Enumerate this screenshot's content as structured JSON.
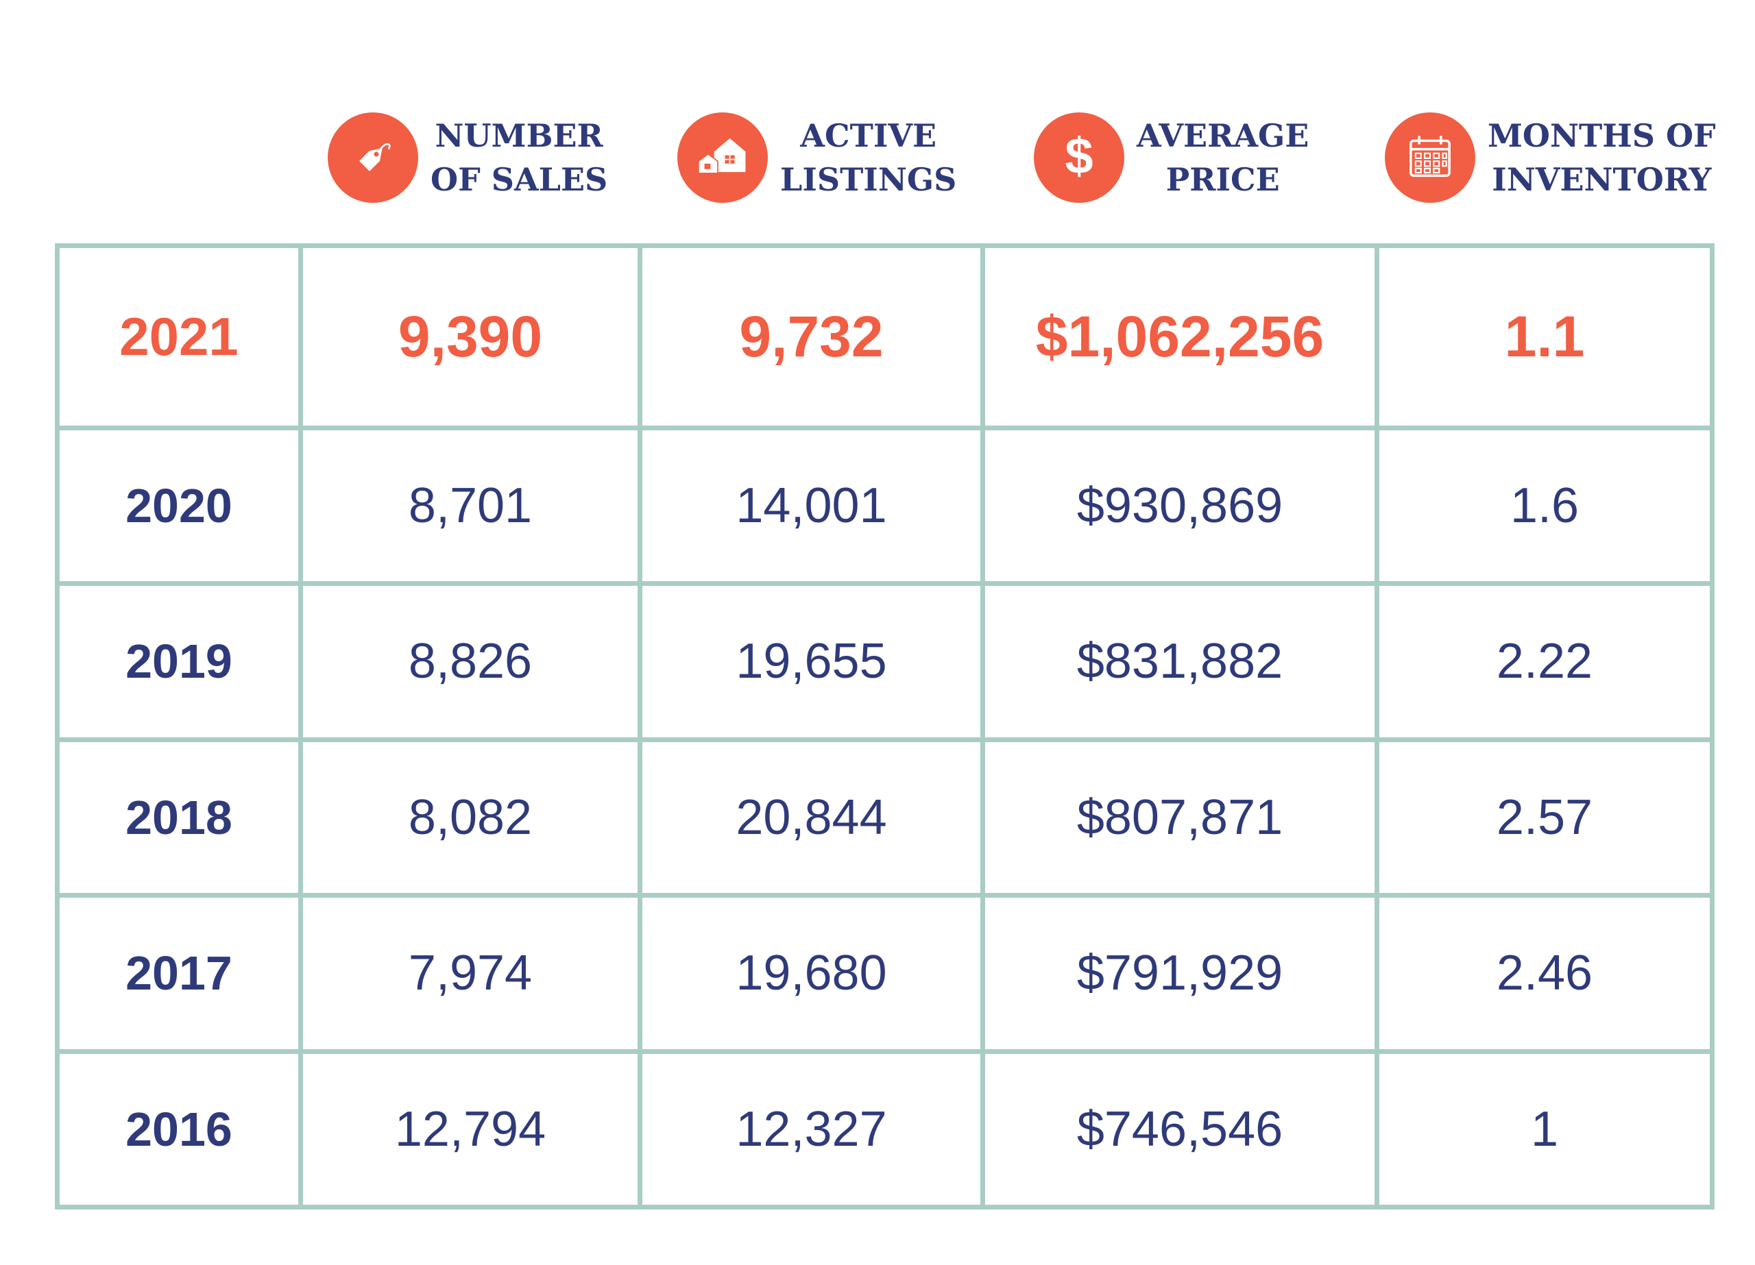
{
  "colors": {
    "accent": "#f15e43",
    "text": "#2f3a7a",
    "grid": "#a9cdc5"
  },
  "headers": [
    {
      "icon": "price-tag-icon",
      "line1": "NUMBER",
      "line2": "OF SALES"
    },
    {
      "icon": "houses-icon",
      "line1": "ACTIVE",
      "line2": "LISTINGS"
    },
    {
      "icon": "dollar-sign-icon",
      "line1": "AVERAGE",
      "line2": "PRICE"
    },
    {
      "icon": "calendar-icon",
      "line1": "MONTHS OF",
      "line2": "INVENTORY"
    }
  ],
  "chart_data": {
    "type": "table",
    "columns": [
      "NUMBER OF SALES",
      "ACTIVE LISTINGS",
      "AVERAGE PRICE",
      "MONTHS OF INVENTORY"
    ],
    "highlighted_row": "2021",
    "rows": [
      {
        "year": "2021",
        "sales": "9,390",
        "listings": "9,732",
        "price": "$1,062,256",
        "inventory": "1.1"
      },
      {
        "year": "2020",
        "sales": "8,701",
        "listings": "14,001",
        "price": "$930,869",
        "inventory": "1.6"
      },
      {
        "year": "2019",
        "sales": "8,826",
        "listings": "19,655",
        "price": "$831,882",
        "inventory": "2.22"
      },
      {
        "year": "2018",
        "sales": "8,082",
        "listings": "20,844",
        "price": "$807,871",
        "inventory": "2.57"
      },
      {
        "year": "2017",
        "sales": "7,974",
        "listings": "19,680",
        "price": "$791,929",
        "inventory": "2.46"
      },
      {
        "year": "2016",
        "sales": "12,794",
        "listings": "12,327",
        "price": "$746,546",
        "inventory": "1"
      }
    ]
  }
}
